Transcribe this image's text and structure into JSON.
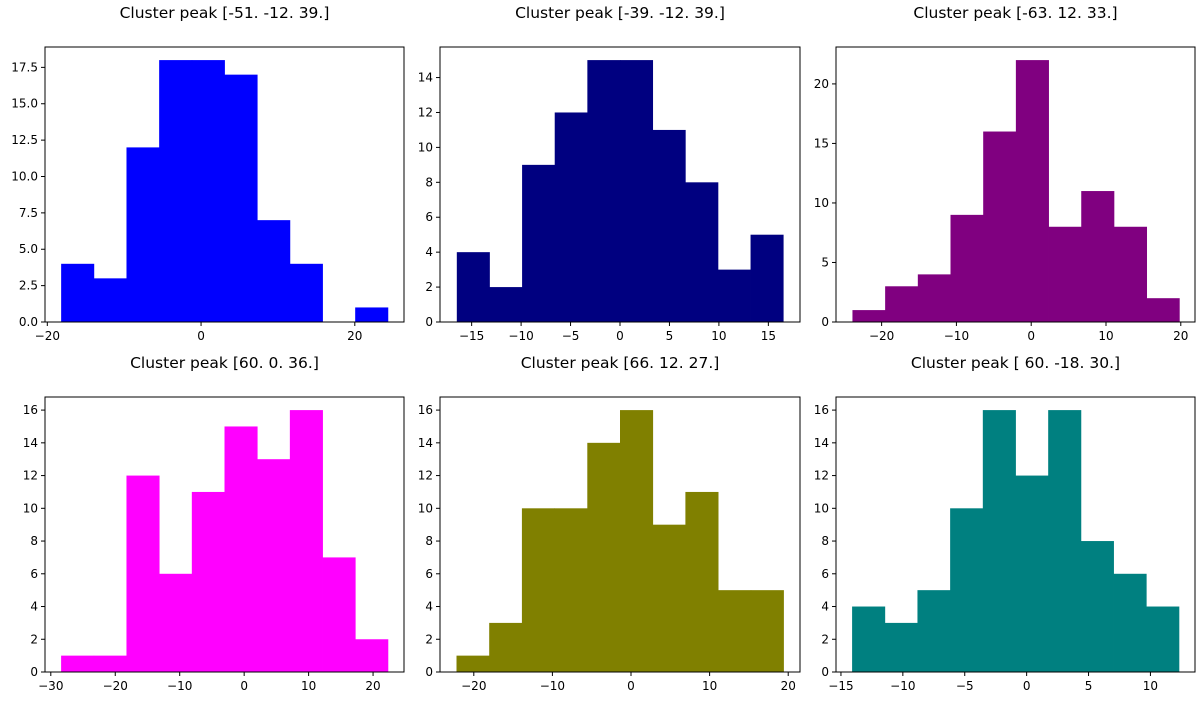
{
  "chart_data": [
    {
      "type": "bar",
      "title": "Cluster peak [-51. -12.  39.]",
      "color": "#0000ff",
      "bin_edges": [
        -18.2,
        -13.95,
        -9.7,
        -5.45,
        -1.2,
        3.05,
        7.3,
        11.55,
        15.8,
        20.05,
        24.3
      ],
      "values": [
        4,
        3,
        12,
        18,
        18,
        17,
        7,
        4,
        0,
        1
      ],
      "xlim": [
        -20.3,
        26.4
      ],
      "ylim": [
        0,
        18.9
      ],
      "xticks": [
        -20,
        0,
        20
      ],
      "yticks": [
        0,
        2.5,
        5,
        7.5,
        10,
        12.5,
        15,
        17.5
      ],
      "xtick_labels": [
        "−20",
        "0",
        "20"
      ],
      "ytick_labels": [
        "0.0",
        "2.5",
        "5.0",
        "7.5",
        "10.0",
        "12.5",
        "15.0",
        "17.5"
      ]
    },
    {
      "type": "bar",
      "title": "Cluster peak [-39. -12.  39.]",
      "color": "#000080",
      "bin_edges": [
        -16.5,
        -13.2,
        -9.9,
        -6.6,
        -3.3,
        0,
        3.3,
        6.6,
        9.9,
        13.2,
        16.5
      ],
      "values": [
        4,
        2,
        9,
        12,
        15,
        15,
        11,
        8,
        3,
        5
      ],
      "xlim": [
        -18.2,
        18.2
      ],
      "ylim": [
        0,
        15.75
      ],
      "xticks": [
        -15,
        -10,
        -5,
        0,
        5,
        10,
        15
      ],
      "yticks": [
        0,
        2,
        4,
        6,
        8,
        10,
        12,
        14
      ],
      "xtick_labels": [
        "−15",
        "−10",
        "−5",
        "0",
        "5",
        "10",
        "15"
      ],
      "ytick_labels": [
        "0",
        "2",
        "4",
        "6",
        "8",
        "10",
        "12",
        "14"
      ]
    },
    {
      "type": "bar",
      "title": "Cluster peak [-63.  12.  33.]",
      "color": "#800080",
      "bin_edges": [
        -23.9,
        -19.53,
        -15.16,
        -10.79,
        -6.42,
        -2.05,
        2.32,
        6.69,
        11.06,
        15.43,
        19.8
      ],
      "values": [
        1,
        3,
        4,
        9,
        16,
        22,
        8,
        11,
        8,
        2
      ],
      "xlim": [
        -26.1,
        21.9
      ],
      "ylim": [
        0,
        23.1
      ],
      "xticks": [
        -20,
        -10,
        0,
        10,
        20
      ],
      "yticks": [
        0,
        5,
        10,
        15,
        20
      ],
      "xtick_labels": [
        "−20",
        "−10",
        "0",
        "10",
        "20"
      ],
      "ytick_labels": [
        "0",
        "5",
        "10",
        "15",
        "20"
      ]
    },
    {
      "type": "bar",
      "title": "Cluster peak [60.  0. 36.]",
      "color": "#ff00ff",
      "bin_edges": [
        -28.4,
        -23.33,
        -18.26,
        -13.19,
        -8.12,
        -3.05,
        2.02,
        7.09,
        12.16,
        17.23,
        22.3
      ],
      "values": [
        1,
        1,
        12,
        6,
        11,
        15,
        13,
        16,
        7,
        2
      ],
      "xlim": [
        -30.9,
        24.8
      ],
      "ylim": [
        0,
        16.8
      ],
      "xticks": [
        -30,
        -20,
        -10,
        0,
        10,
        20
      ],
      "yticks": [
        0,
        2,
        4,
        6,
        8,
        10,
        12,
        14,
        16
      ],
      "xtick_labels": [
        "−30",
        "−20",
        "−10",
        "0",
        "10",
        "20"
      ],
      "ytick_labels": [
        "0",
        "2",
        "4",
        "6",
        "8",
        "10",
        "12",
        "14",
        "16"
      ]
    },
    {
      "type": "bar",
      "title": "Cluster peak [66. 12. 27.]",
      "color": "#808000",
      "bin_edges": [
        -22.2,
        -18.04,
        -13.88,
        -9.72,
        -5.56,
        -1.4,
        2.76,
        6.92,
        11.08,
        15.24,
        19.4
      ],
      "values": [
        1,
        3,
        10,
        10,
        14,
        16,
        9,
        11,
        5,
        5
      ],
      "xlim": [
        -24.3,
        21.5
      ],
      "ylim": [
        0,
        16.8
      ],
      "xticks": [
        -20,
        -10,
        0,
        10,
        20
      ],
      "yticks": [
        0,
        2,
        4,
        6,
        8,
        10,
        12,
        14,
        16
      ],
      "xtick_labels": [
        "−20",
        "−10",
        "0",
        "10",
        "20"
      ],
      "ytick_labels": [
        "0",
        "2",
        "4",
        "6",
        "8",
        "10",
        "12",
        "14",
        "16"
      ]
    },
    {
      "type": "bar",
      "title": "Cluster peak [ 60. -18.  30.]",
      "color": "#008080",
      "bin_edges": [
        -14.1,
        -11.46,
        -8.82,
        -6.18,
        -3.54,
        -0.9,
        1.74,
        4.38,
        7.02,
        9.66,
        12.3
      ],
      "values": [
        4,
        3,
        5,
        10,
        16,
        12,
        16,
        8,
        6,
        4
      ],
      "xlim": [
        -15.4,
        13.6
      ],
      "ylim": [
        0,
        16.8
      ],
      "xticks": [
        -15,
        -10,
        -5,
        0,
        5,
        10
      ],
      "yticks": [
        0,
        2,
        4,
        6,
        8,
        10,
        12,
        14,
        16
      ],
      "xtick_labels": [
        "−15",
        "−10",
        "−5",
        "0",
        "5",
        "10"
      ],
      "ytick_labels": [
        "0",
        "2",
        "4",
        "6",
        "8",
        "10",
        "12",
        "14",
        "16"
      ]
    }
  ]
}
